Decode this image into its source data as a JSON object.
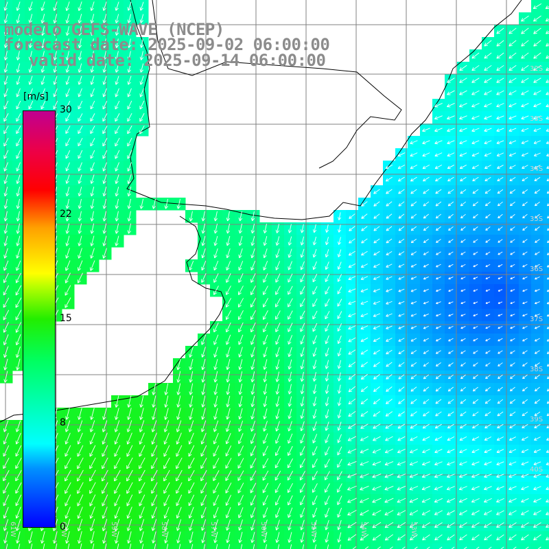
{
  "title": {
    "line1": "modelo GEFS-WAVE (NCEP)",
    "line2": "forecast date: 2025-09-02 06:00:00",
    "line3": "valid date: 2025-09-14 06:00:00"
  },
  "colorbar": {
    "units": "[m/s]",
    "ticks": [
      "30",
      "22",
      "15",
      "8",
      "0"
    ],
    "colors": [
      "#0000ff",
      "#0090ff",
      "#00ffff",
      "#00ff60",
      "#22ee00",
      "#bbff00",
      "#ffff00",
      "#ffa000",
      "#ff0000",
      "#ee0044",
      "#c00090"
    ]
  },
  "lat_labels": [
    "32S",
    "33S",
    "34S",
    "35S",
    "36S",
    "37S",
    "38S",
    "39S",
    "40S"
  ],
  "lon_labels": [
    "61W",
    "60W",
    "59W",
    "58W",
    "57W",
    "56W",
    "55W",
    "54W",
    "53W"
  ],
  "colors": {
    "land": "#ffffff",
    "grid": "#808080",
    "coast": "#000000",
    "arrows": "#ffffff",
    "title": "#8c8c8c"
  }
}
